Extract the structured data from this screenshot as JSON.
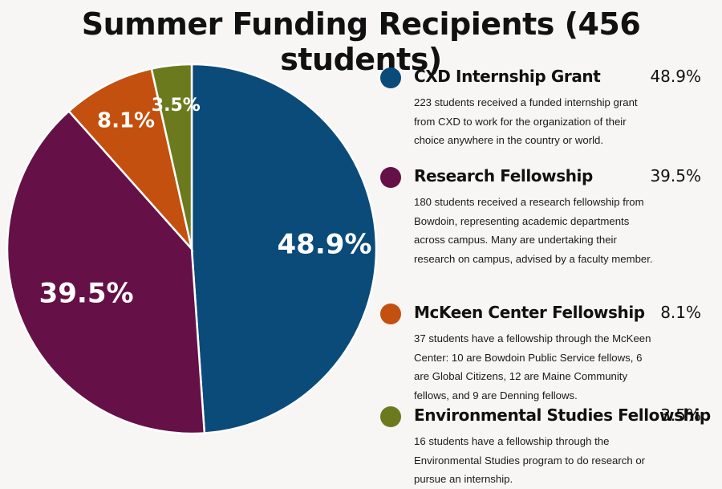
{
  "title": "Summer Funding Recipients (456 students)",
  "chart_data": {
    "type": "pie",
    "slices": [
      {
        "label": "CXD Internship Grant",
        "value": 48.9,
        "display": "48.9%",
        "color": "#0a4b7a",
        "description": "223 students received a funded internship grant from CXD to work for the organization of their choice anywhere in the country or world."
      },
      {
        "label": "Research Fellowship",
        "value": 39.5,
        "display": "39.5%",
        "color": "#651047",
        "description": "180 students received a research fellowship from Bowdoin, representing academic departments across campus. Many are undertaking their research on campus, advised by a faculty member."
      },
      {
        "label": "McKeen Center Fellowship",
        "value": 8.1,
        "display": "8.1%",
        "color": "#c4500f",
        "description": "37 students have a fellowship through the McKeen Center: 10 are Bowdoin Public Service fellows, 6 are Global Citizens, 12 are Maine Community fellows, and 9 are Denning fellows."
      },
      {
        "label": "Environmental Studies Fellowship",
        "value": 3.5,
        "display": "3.5%",
        "color": "#6c7a1e",
        "description": "16 students have a fellowship through the Environmental Studies program to do research or pursue an internship."
      }
    ],
    "legend_position": "right"
  }
}
